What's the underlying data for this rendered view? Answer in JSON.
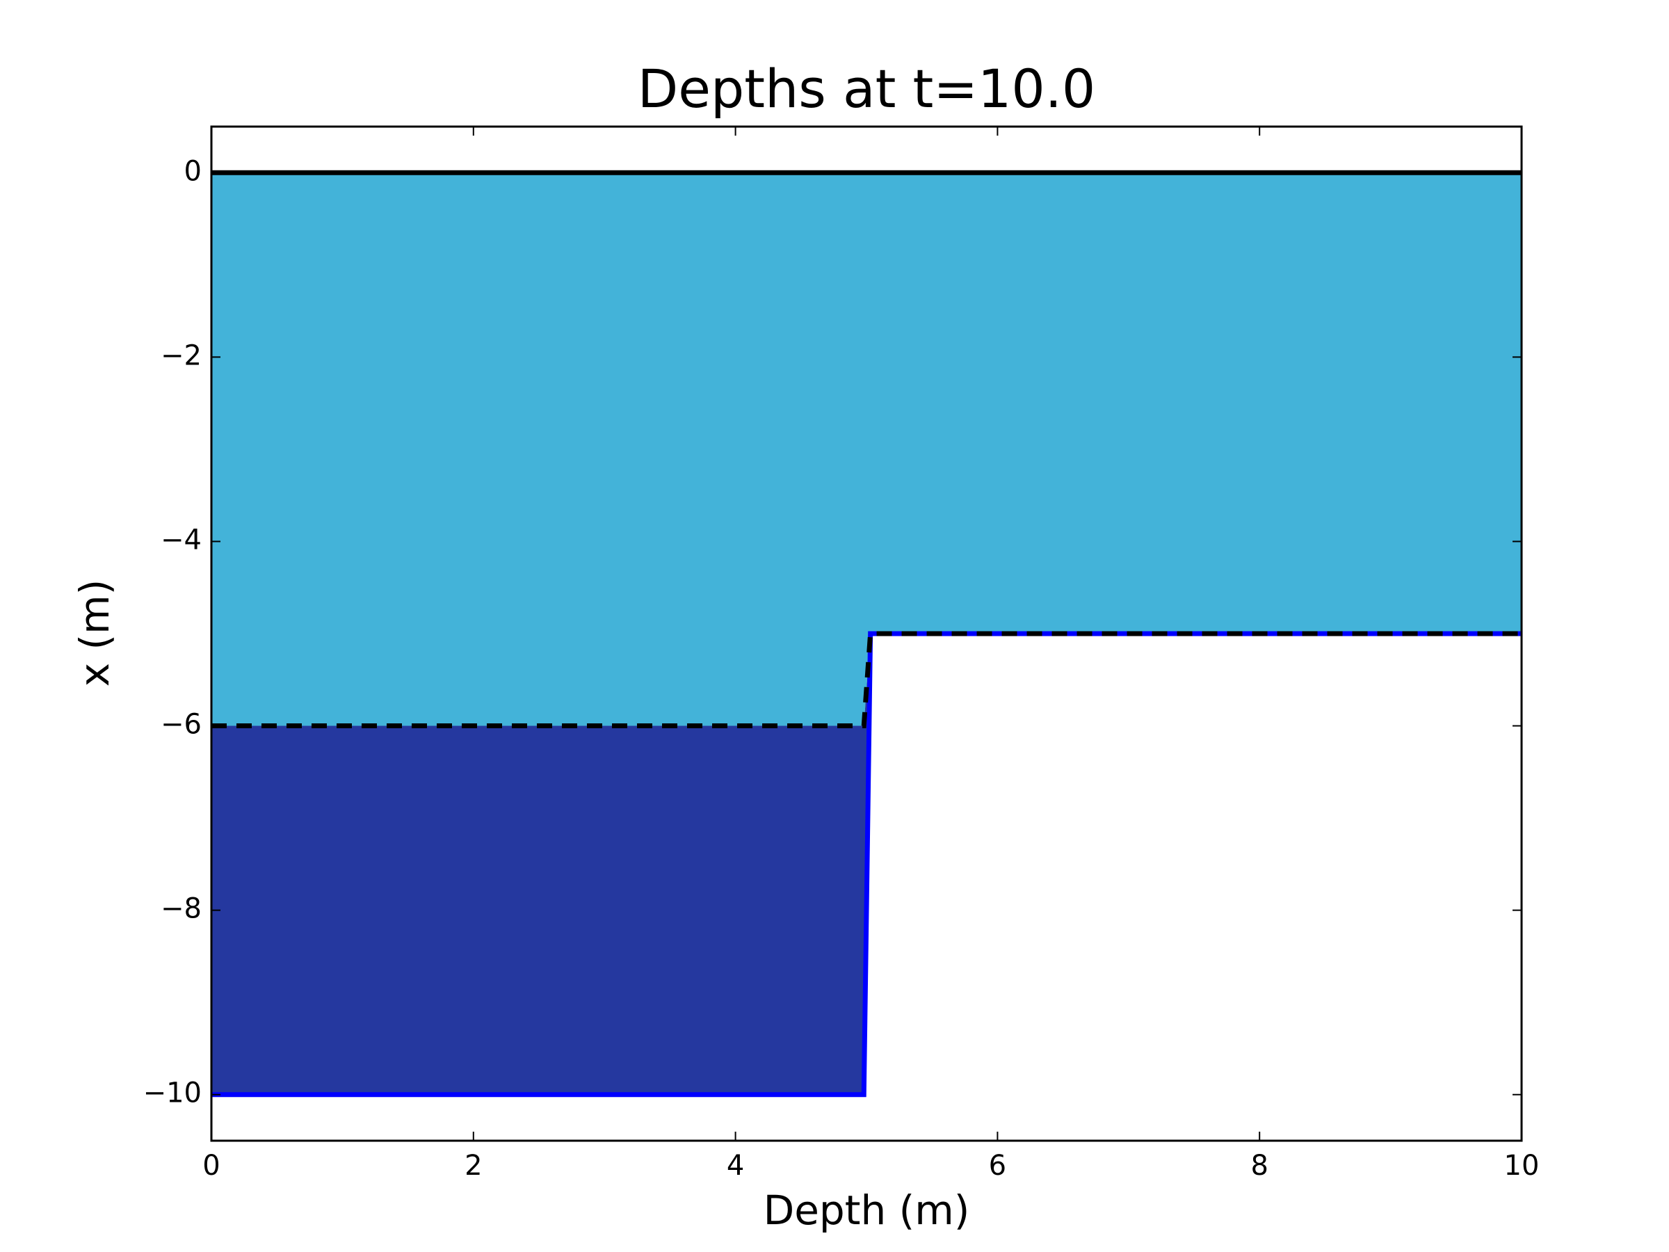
{
  "chart_data": {
    "type": "layers",
    "title": "Depths at t=10.0",
    "x_label": "Depth (m)",
    "y_label": "x (m)",
    "x": [
      0,
      4.98,
      5.03,
      10
    ],
    "series": [
      {
        "color": "#000000",
        "values": [
          0,
          0,
          0,
          0
        ],
        "fill_color": "#43b3d9"
      },
      {
        "color": "#000000",
        "values": [
          -6,
          -6,
          -5,
          -5
        ],
        "dashed": true,
        "fill_color": "#25389f"
      },
      {
        "color": "#0000ff",
        "values": [
          -10,
          -10,
          -5,
          -5
        ]
      }
    ],
    "xlim": [
      0,
      10
    ],
    "xticks": [
      0,
      2,
      4,
      6,
      8,
      10
    ],
    "ylim": [
      -10.5,
      0.5
    ],
    "yticks": [
      {
        "value": 0,
        "label": "0"
      },
      {
        "value": -2,
        "label": "−2"
      },
      {
        "value": -4,
        "label": "−4"
      },
      {
        "value": -6,
        "label": "−6"
      },
      {
        "value": -8,
        "label": "−8"
      },
      {
        "value": -10,
        "label": "−10"
      }
    ]
  }
}
